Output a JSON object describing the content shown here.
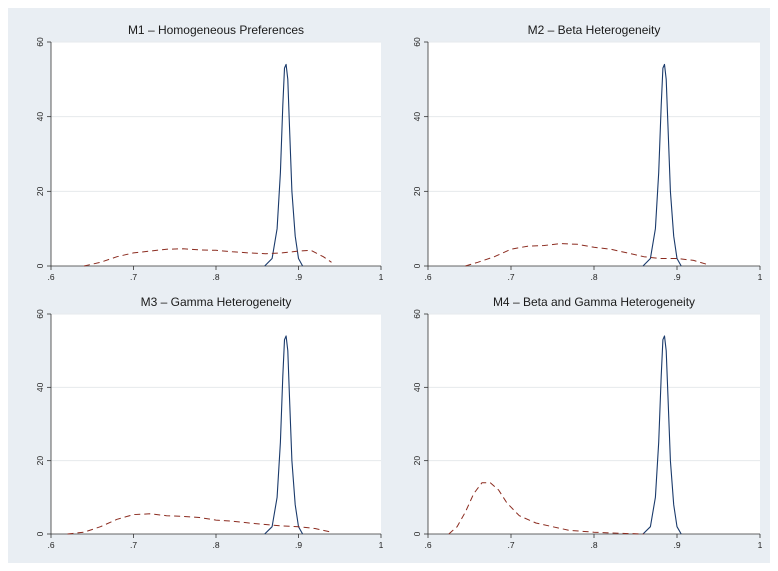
{
  "colors": {
    "background": "#e9eef3",
    "plot_area": "#ffffff",
    "gridline": "#e6e9ec",
    "solid_line": "#1a3a6b",
    "dashed_line": "#8b2b1f"
  },
  "chart_data": [
    {
      "type": "line",
      "title": "M1 – Homogeneous Preferences",
      "xlim": [
        0.6,
        1.0
      ],
      "ylim": [
        0,
        60
      ],
      "xticks": [
        ".6",
        ".7",
        ".8",
        ".9",
        "1"
      ],
      "yticks": [
        "0",
        "20",
        "40",
        "60"
      ],
      "grid": true,
      "series": [
        {
          "style": "solid",
          "x": [
            0.859,
            0.868,
            0.874,
            0.878,
            0.881,
            0.883,
            0.885,
            0.887,
            0.889,
            0.892,
            0.896,
            0.9,
            0.905
          ],
          "y": [
            0,
            2,
            10,
            25,
            43,
            53,
            54,
            50,
            38,
            20,
            8,
            2,
            0
          ]
        },
        {
          "style": "dashed",
          "x": [
            0.64,
            0.66,
            0.68,
            0.7,
            0.72,
            0.74,
            0.76,
            0.78,
            0.8,
            0.82,
            0.84,
            0.86,
            0.88,
            0.9,
            0.915,
            0.93,
            0.94
          ],
          "y": [
            0,
            1,
            2.5,
            3.5,
            4,
            4.5,
            4.6,
            4.3,
            4.2,
            3.8,
            3.5,
            3.3,
            3.5,
            4,
            4.2,
            2.5,
            1
          ]
        }
      ]
    },
    {
      "type": "line",
      "title": "M2 – Beta Heterogeneity",
      "xlim": [
        0.6,
        1.0
      ],
      "ylim": [
        0,
        60
      ],
      "xticks": [
        ".6",
        ".7",
        ".8",
        ".9",
        "1"
      ],
      "yticks": [
        "0",
        "20",
        "40",
        "60"
      ],
      "grid": true,
      "series": [
        {
          "style": "solid",
          "x": [
            0.859,
            0.868,
            0.874,
            0.878,
            0.881,
            0.883,
            0.885,
            0.887,
            0.889,
            0.892,
            0.896,
            0.9,
            0.905
          ],
          "y": [
            0,
            2,
            10,
            25,
            43,
            53,
            54,
            50,
            38,
            20,
            8,
            2,
            0
          ]
        },
        {
          "style": "dashed",
          "x": [
            0.645,
            0.66,
            0.68,
            0.7,
            0.72,
            0.74,
            0.76,
            0.78,
            0.8,
            0.82,
            0.84,
            0.86,
            0.88,
            0.9,
            0.92,
            0.935
          ],
          "y": [
            0,
            1,
            2.5,
            4.5,
            5.3,
            5.5,
            6,
            5.8,
            5,
            4.5,
            3.5,
            2.5,
            2,
            2,
            1.5,
            0.5
          ]
        }
      ]
    },
    {
      "type": "line",
      "title": "M3 – Gamma Heterogeneity",
      "xlim": [
        0.6,
        1.0
      ],
      "ylim": [
        0,
        60
      ],
      "xticks": [
        ".6",
        ".7",
        ".8",
        ".9",
        "1"
      ],
      "yticks": [
        "0",
        "20",
        "40",
        "60"
      ],
      "grid": true,
      "series": [
        {
          "style": "solid",
          "x": [
            0.859,
            0.868,
            0.874,
            0.878,
            0.881,
            0.883,
            0.885,
            0.887,
            0.889,
            0.892,
            0.896,
            0.9,
            0.905
          ],
          "y": [
            0,
            2,
            10,
            25,
            43,
            53,
            54,
            50,
            38,
            20,
            8,
            2,
            0
          ]
        },
        {
          "style": "dashed",
          "x": [
            0.62,
            0.64,
            0.66,
            0.68,
            0.7,
            0.72,
            0.74,
            0.76,
            0.78,
            0.8,
            0.82,
            0.84,
            0.86,
            0.88,
            0.9,
            0.92,
            0.94
          ],
          "y": [
            0,
            0.5,
            2,
            4,
            5.3,
            5.5,
            5,
            4.8,
            4.5,
            3.8,
            3.5,
            3,
            2.6,
            2.2,
            2,
            1.5,
            0.5
          ]
        }
      ]
    },
    {
      "type": "line",
      "title": "M4 – Beta and Gamma Heterogeneity",
      "xlim": [
        0.6,
        1.0
      ],
      "ylim": [
        0,
        60
      ],
      "xticks": [
        ".6",
        ".7",
        ".8",
        ".9",
        "1"
      ],
      "yticks": [
        "0",
        "20",
        "40",
        "60"
      ],
      "grid": true,
      "series": [
        {
          "style": "solid",
          "x": [
            0.859,
            0.868,
            0.874,
            0.878,
            0.881,
            0.883,
            0.885,
            0.887,
            0.889,
            0.892,
            0.896,
            0.9,
            0.905
          ],
          "y": [
            0,
            2,
            10,
            25,
            43,
            53,
            54,
            50,
            38,
            20,
            8,
            2,
            0
          ]
        },
        {
          "style": "dashed",
          "x": [
            0.625,
            0.635,
            0.645,
            0.655,
            0.665,
            0.675,
            0.685,
            0.695,
            0.71,
            0.73,
            0.75,
            0.77,
            0.8,
            0.83,
            0.86
          ],
          "y": [
            0,
            2,
            6,
            11,
            14,
            14,
            12,
            8.5,
            5,
            3,
            2,
            1,
            0.5,
            0.2,
            0
          ]
        }
      ]
    }
  ]
}
